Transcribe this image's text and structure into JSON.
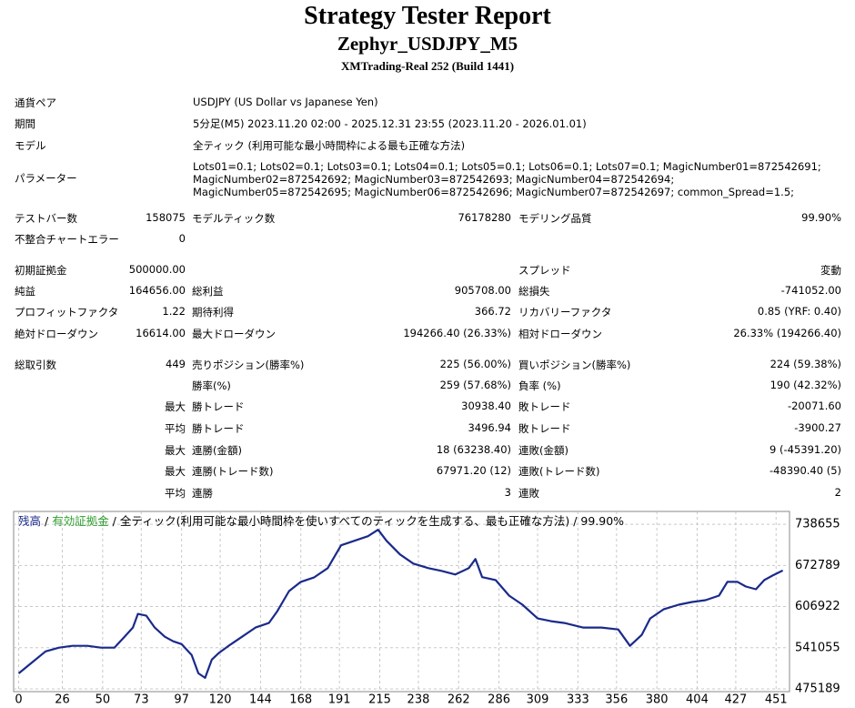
{
  "header": {
    "title": "Strategy Tester Report",
    "subtitle": "Zephyr_USDJPY_M5",
    "build": "XMTrading-Real 252 (Build 1441)"
  },
  "settings": [
    [
      "通貨ペア",
      "USDJPY (US Dollar vs Japanese Yen)"
    ],
    [
      "期間",
      "5分足(M5) 2023.11.20 02:00 - 2025.12.31 23:55 (2023.11.20 - 2026.01.01)"
    ],
    [
      "モデル",
      "全ティック (利用可能な最小時間枠による最も正確な方法)"
    ],
    [
      "パラメーター",
      "Lots01=0.1; Lots02=0.1; Lots03=0.1; Lots04=0.1; Lots05=0.1; Lots06=0.1; Lots07=0.1; MagicNumber01=872542691; MagicNumber02=872542692; MagicNumber03=872542693; MagicNumber04=872542694; MagicNumber05=872542695; MagicNumber06=872542696; MagicNumber07=872542697; common_Spread=1.5;"
    ]
  ],
  "stats": [
    [
      "テストバー数",
      "158075",
      "モデルティック数",
      "76178280",
      "モデリング品質",
      "99.90%"
    ],
    [
      "不整合チャートエラー",
      "0",
      null,
      null,
      null,
      null
    ],
    [
      "初期証拠金",
      "500000.00",
      null,
      null,
      "スプレッド",
      "変動"
    ],
    [
      "純益",
      "164656.00",
      "総利益",
      "905708.00",
      "総損失",
      "-741052.00"
    ],
    [
      "プロフィットファクタ",
      "1.22",
      "期待利得",
      "366.72",
      "リカバリーファクタ",
      "0.85 (YRF: 0.40)"
    ],
    [
      "絶対ドローダウン",
      "16614.00",
      "最大ドローダウン",
      "194266.40 (26.33%)",
      "相対ドローダウン",
      "26.33% (194266.40)"
    ],
    [
      "総取引数",
      "449",
      "売りポジション(勝率%)",
      "225 (56.00%)",
      "買いポジション(勝率%)",
      "224 (59.38%)"
    ],
    [
      null,
      null,
      "勝率(%)",
      "259 (57.68%)",
      "負率 (%)",
      "190 (42.32%)"
    ],
    [
      null,
      "最大",
      "勝トレード",
      "30938.40",
      "敗トレード",
      "-20071.60"
    ],
    [
      null,
      "平均",
      "勝トレード",
      "3496.94",
      "敗トレード",
      "-3900.27"
    ],
    [
      null,
      "最大",
      "連勝(金額)",
      "18 (63238.40)",
      "連敗(金額)",
      "9 (-45391.20)"
    ],
    [
      null,
      "最大",
      "連勝(トレード数)",
      "67971.20 (12)",
      "連敗(トレード数)",
      "-48390.40 (5)"
    ],
    [
      null,
      "平均",
      "連勝",
      "3",
      "連敗",
      "2"
    ]
  ],
  "chart_data": {
    "type": "line",
    "legend": [
      {
        "text": "残高",
        "color": "#1a2a8a"
      },
      {
        "text": " / ",
        "color": "#000000"
      },
      {
        "text": "有効証拠金",
        "color": "#2e9e2e"
      },
      {
        "text": " / 全ティック(利用可能な最小時間枠を使いすべてのティックを生成する、最も正確な方法) / 99.90%",
        "color": "#000000"
      }
    ],
    "series": [
      {
        "name": "残高",
        "color": "#1a2a8a",
        "x": [
          0,
          8,
          16,
          24,
          32,
          41,
          49,
          57,
          63,
          68,
          71,
          76,
          81,
          87,
          92,
          97,
          103,
          107,
          111,
          115,
          119,
          125,
          133,
          141,
          149,
          154,
          161,
          168,
          176,
          184,
          192,
          200,
          208,
          214,
          219,
          227,
          235,
          244,
          252,
          260,
          268,
          272,
          276,
          284,
          292,
          300,
          309,
          317,
          325,
          336,
          347,
          357,
          364,
          371,
          376,
          384,
          393,
          401,
          409,
          417,
          422,
          428,
          433,
          439,
          444,
          449,
          455
        ],
        "values": [
          500000,
          517600,
          535200,
          541100,
          544000,
          544000,
          541100,
          541100,
          558600,
          573300,
          595200,
          592300,
          573300,
          558600,
          551300,
          546900,
          529300,
          500100,
          492800,
          522000,
          532300,
          544000,
          558600,
          573300,
          580600,
          599600,
          631800,
          646400,
          653800,
          668400,
          705000,
          712300,
          719600,
          729900,
          712300,
          690400,
          675700,
          668400,
          664000,
          658200,
          668400,
          683000,
          654000,
          649400,
          624500,
          609900,
          587900,
          583500,
          580600,
          573300,
          573300,
          570300,
          544000,
          561600,
          587900,
          602500,
          609900,
          614200,
          617200,
          624500,
          646400,
          646400,
          639100,
          634700,
          649400,
          656700,
          664656
        ]
      }
    ],
    "xlim": [
      -3,
      459
    ],
    "ylim": [
      470800,
      759200
    ],
    "xticks": [
      0,
      26,
      50,
      73,
      97,
      120,
      144,
      168,
      191,
      215,
      238,
      262,
      286,
      309,
      333,
      356,
      380,
      404,
      427,
      451
    ],
    "yticks": [
      475189,
      541055,
      606922,
      672789,
      738655
    ],
    "grid": true
  }
}
